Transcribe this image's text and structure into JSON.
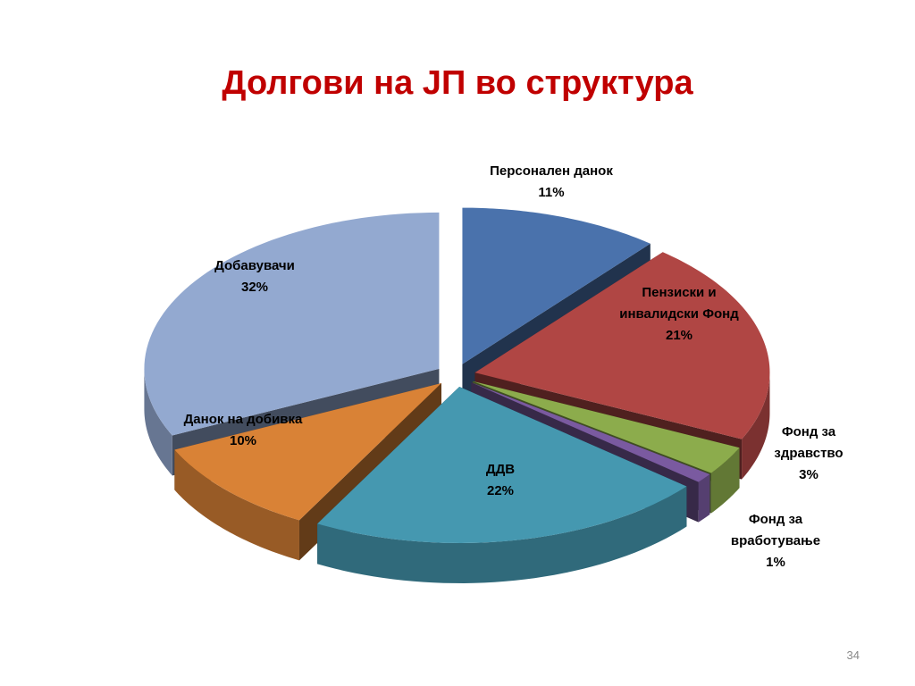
{
  "chart_data": {
    "type": "pie",
    "title": "Долгови на ЈП во структура",
    "categories": [
      "Персонален данок",
      "Пензиски и инвалидски Фонд",
      "Фонд за здравство",
      "Фонд за вработување",
      "ДДВ",
      "Данок на добивка",
      "Добавувачи"
    ],
    "values": [
      11,
      21,
      3,
      1,
      22,
      10,
      32
    ],
    "value_labels": [
      "11%",
      "21%",
      "3%",
      "1%",
      "22%",
      "10%",
      "32%"
    ],
    "colors": [
      "#4a72ac",
      "#b04644",
      "#8cac4c",
      "#7a5aa0",
      "#4598b0",
      "#d98236",
      "#93a9d0"
    ]
  },
  "slide_number": "34"
}
